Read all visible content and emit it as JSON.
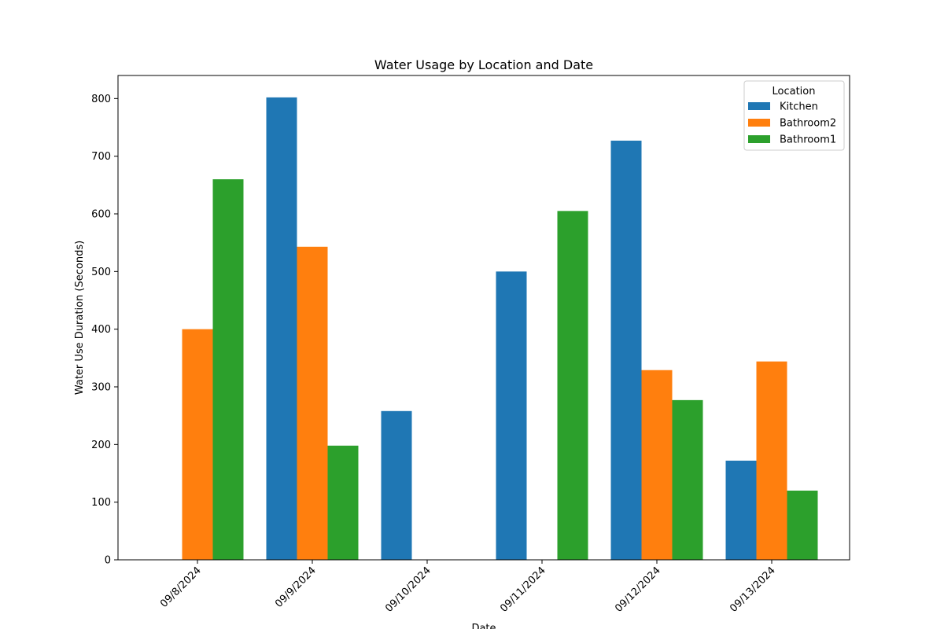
{
  "chart_data": {
    "type": "bar",
    "title": "Water Usage by Location and Date",
    "xlabel": "Date",
    "ylabel": "Water Use Duration (Seconds)",
    "categories": [
      "09/8/2024",
      "09/9/2024",
      "09/10/2024",
      "09/11/2024",
      "09/12/2024",
      "09/13/2024"
    ],
    "series": [
      {
        "name": "Kitchen",
        "color": "#1f77b4",
        "values": [
          0,
          802,
          258,
          500,
          727,
          172
        ]
      },
      {
        "name": "Bathroom2",
        "color": "#ff7f0e",
        "values": [
          400,
          543,
          0,
          0,
          329,
          344
        ]
      },
      {
        "name": "Bathroom1",
        "color": "#2ca02c",
        "values": [
          660,
          198,
          0,
          605,
          277,
          120
        ]
      }
    ],
    "ylim": [
      0,
      840
    ],
    "yticks": [
      0,
      100,
      200,
      300,
      400,
      500,
      600,
      700,
      800
    ],
    "legend": {
      "title": "Location",
      "placement": "top-right"
    },
    "grid": false
  }
}
